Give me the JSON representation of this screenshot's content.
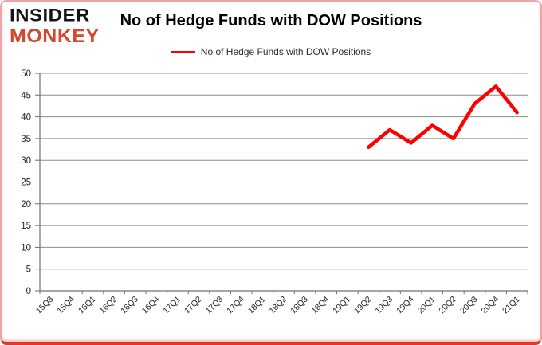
{
  "logo": {
    "line1": "INSIDER",
    "line2": "MONKEY",
    "accent_color": "#d2492e"
  },
  "header": {
    "title": "No of Hedge Funds with DOW Positions"
  },
  "legend": {
    "label": "No of Hedge Funds with DOW Positions",
    "line_color": "#ff0000"
  },
  "chart_data": {
    "type": "line",
    "title": "No of Hedge Funds with DOW Positions",
    "categories": [
      "15Q3",
      "15Q4",
      "16Q1",
      "16Q2",
      "16Q3",
      "16Q4",
      "17Q1",
      "17Q2",
      "17Q3",
      "17Q4",
      "18Q1",
      "18Q2",
      "18Q3",
      "18Q4",
      "19Q1",
      "19Q2",
      "19Q3",
      "19Q4",
      "20Q1",
      "20Q2",
      "20Q3",
      "20Q4",
      "21Q1"
    ],
    "series": [
      {
        "name": "No of Hedge Funds with DOW Positions",
        "color": "#ff0000",
        "start_category": "19Q2",
        "start_index": 15,
        "x": [
          "19Q2",
          "19Q3",
          "19Q4",
          "20Q1",
          "20Q2",
          "20Q3",
          "20Q4",
          "21Q1"
        ],
        "values": [
          33,
          37,
          34,
          38,
          35,
          43,
          47,
          41
        ]
      }
    ],
    "ylim": [
      0,
      50
    ],
    "ytick_step": 5,
    "yticks": [
      0,
      5,
      10,
      15,
      20,
      25,
      30,
      35,
      40,
      45,
      50
    ],
    "grid": true,
    "legend_position": "top"
  },
  "colors": {
    "grid": "#8c8c8c",
    "axis": "#707070",
    "tick_text": "#262626",
    "border": "#eca6a6",
    "border_bottom": "#e0392b"
  }
}
